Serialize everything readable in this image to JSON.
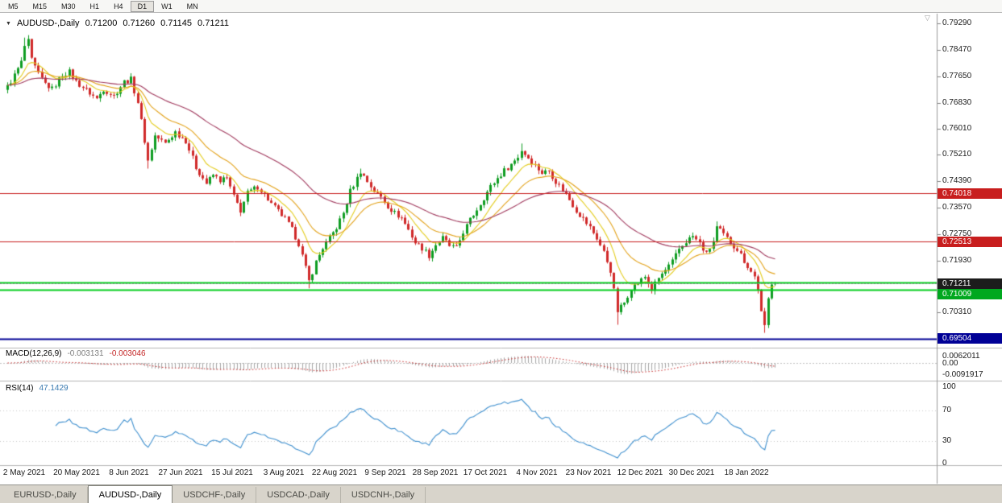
{
  "toolbar": {
    "timeframes": [
      "M5",
      "M15",
      "M30",
      "H1",
      "H4",
      "D1",
      "W1",
      "MN"
    ],
    "active_timeframe": "D1"
  },
  "icons": {
    "collapse": "▼",
    "shift_marker": "▽"
  },
  "chart": {
    "title": {
      "symbol": "AUDUSD-,Daily",
      "open": "0.71200",
      "high": "0.71260",
      "low": "0.71145",
      "close": "0.71211"
    },
    "price_axis_labels": [
      "0.79290",
      "0.78470",
      "0.77650",
      "0.76830",
      "0.76010",
      "0.75210",
      "0.74390",
      "0.73570",
      "0.72750",
      "0.71930",
      "0.70310"
    ],
    "price_tags": [
      {
        "name": "price-tag-resistance-1",
        "label": "0.74018",
        "value": 0.74018,
        "bg": "#c81e1e"
      },
      {
        "name": "price-tag-resistance-2",
        "label": "0.72513",
        "value": 0.72513,
        "bg": "#c81e1e"
      },
      {
        "name": "price-tag-last-price",
        "label": "0.71211",
        "value": 0.71211,
        "bg": "#1c1c1c"
      },
      {
        "name": "price-tag-support-green",
        "label": "0.71009",
        "value": 0.71009,
        "bg": "#00a81f"
      },
      {
        "name": "price-tag-support-blue",
        "label": "0.69504",
        "value": 0.69504,
        "bg": "#000096"
      }
    ],
    "hlines": [
      {
        "name": "resistance-line-1",
        "value": 0.74018,
        "color": "#c81e1e",
        "width": 1
      },
      {
        "name": "resistance-line-2",
        "value": 0.72513,
        "color": "#c81e1e",
        "width": 1
      },
      {
        "name": "support-zone-top",
        "value": 0.7125,
        "color": "#00ce1b",
        "width": 2
      },
      {
        "name": "support-zone-bottom",
        "value": 0.71009,
        "color": "#00ce1b",
        "width": 2
      },
      {
        "name": "bid-line",
        "value": 0.71211,
        "color": "#8a8a8a",
        "width": 1,
        "dash": [
          2,
          2
        ]
      },
      {
        "name": "major-support-line",
        "value": 0.69504,
        "color": "#000096",
        "width": 2
      }
    ],
    "date_axis": [
      [
        "2 May 2021",
        30
      ],
      [
        "20 May 2021",
        95
      ],
      [
        "8 Jun 2021",
        160
      ],
      [
        "27 Jun 2021",
        224
      ],
      [
        "15 Jul 2021",
        288
      ],
      [
        "3 Aug 2021",
        352
      ],
      [
        "22 Aug 2021",
        415
      ],
      [
        "9 Sep 2021",
        478
      ],
      [
        "28 Sep 2021",
        540
      ],
      [
        "17 Oct 2021",
        602
      ],
      [
        "4 Nov 2021",
        666
      ],
      [
        "23 Nov 2021",
        730
      ],
      [
        "12 Dec 2021",
        794
      ],
      [
        "30 Dec 2021",
        858
      ],
      [
        "18 Jan 2022",
        926
      ]
    ]
  },
  "macd": {
    "label": "MACD(12,26,9)",
    "value_main": "-0.003131",
    "value_signal": "-0.003046",
    "axis_labels": [
      {
        "text": "0.0062011",
        "value": 0.0062011
      },
      {
        "text": "0.00",
        "value": 0
      },
      {
        "text": "-0.0091917",
        "value": -0.0091917
      }
    ],
    "histogram_color": "#a6a6a6",
    "signal_color": "#c42525"
  },
  "rsi": {
    "label": "RSI(14)",
    "value": "47.1429",
    "axis_labels": [
      {
        "text": "100",
        "value": 100
      },
      {
        "text": "70",
        "value": 70
      },
      {
        "text": "30",
        "value": 30
      },
      {
        "text": "0",
        "value": 0
      }
    ],
    "levels": [
      70,
      30
    ],
    "line_color": "#3e8fce"
  },
  "tabs": [
    {
      "id": "eurusd-daily",
      "label": "EURUSD-,Daily",
      "active": false
    },
    {
      "id": "audusd-daily",
      "label": "AUDUSD-,Daily",
      "active": true
    },
    {
      "id": "usdchf-daily",
      "label": "USDCHF-,Daily",
      "active": false
    },
    {
      "id": "usdcad-daily",
      "label": "USDCAD-,Daily",
      "active": false
    },
    {
      "id": "usdcnh-daily",
      "label": "USDCNH-,Daily",
      "active": false
    }
  ],
  "chart_data": {
    "type": "candlestick",
    "title": "AUDUSD-,Daily",
    "symbol": "AUDUSD",
    "timeframe": "Daily",
    "current_bar": {
      "open": 0.712,
      "high": 0.7126,
      "low": 0.71145,
      "close": 0.71211
    },
    "candle_count": 225,
    "up_color": "#0f9d22",
    "down_color": "#d02a2a",
    "y_axis": {
      "ticks": [
        0.7929,
        0.7847,
        0.7765,
        0.7683,
        0.7601,
        0.7521,
        0.7439,
        0.7357,
        0.7275,
        0.7193,
        0.7031
      ],
      "tick_interval": 0.0082
    },
    "x_axis_labels": [
      "2 May 2021",
      "20 May 2021",
      "8 Jun 2021",
      "27 Jun 2021",
      "15 Jul 2021",
      "3 Aug 2021",
      "22 Aug 2021",
      "9 Sep 2021",
      "28 Sep 2021",
      "17 Oct 2021",
      "4 Nov 2021",
      "23 Nov 2021",
      "12 Dec 2021",
      "30 Dec 2021",
      "18 Jan 2022"
    ],
    "key_levels": {
      "resistance": [
        0.74018,
        0.72513
      ],
      "support_zone": [
        0.7125,
        0.71009
      ],
      "major_support": 0.69504,
      "last": 0.71211
    },
    "moving_averages": [
      {
        "period": 9,
        "color": "#e3cc1d"
      },
      {
        "period": 20,
        "color": "#e2a118"
      },
      {
        "period": 50,
        "color": "#a13a5e"
      }
    ],
    "close_path_anchors": [
      [
        0,
        0.7732
      ],
      [
        2,
        0.7768
      ],
      [
        4,
        0.7808
      ],
      [
        5,
        0.7858
      ],
      [
        6,
        0.7872
      ],
      [
        7,
        0.7815
      ],
      [
        9,
        0.777
      ],
      [
        11,
        0.7742
      ],
      [
        13,
        0.7725
      ],
      [
        16,
        0.777
      ],
      [
        18,
        0.7778
      ],
      [
        20,
        0.7748
      ],
      [
        23,
        0.7722
      ],
      [
        26,
        0.7695
      ],
      [
        28,
        0.7725
      ],
      [
        31,
        0.7704
      ],
      [
        34,
        0.7748
      ],
      [
        36,
        0.7755
      ],
      [
        38,
        0.7685
      ],
      [
        40,
        0.7565
      ],
      [
        41,
        0.7502
      ],
      [
        43,
        0.758
      ],
      [
        46,
        0.7556
      ],
      [
        49,
        0.7592
      ],
      [
        52,
        0.7565
      ],
      [
        55,
        0.7482
      ],
      [
        58,
        0.7432
      ],
      [
        60,
        0.7458
      ],
      [
        62,
        0.7442
      ],
      [
        64,
        0.7448
      ],
      [
        66,
        0.739
      ],
      [
        68,
        0.7348
      ],
      [
        70,
        0.7402
      ],
      [
        73,
        0.7422
      ],
      [
        75,
        0.7398
      ],
      [
        77,
        0.7368
      ],
      [
        79,
        0.7345
      ],
      [
        81,
        0.7322
      ],
      [
        83,
        0.7288
      ],
      [
        85,
        0.7245
      ],
      [
        87,
        0.7168
      ],
      [
        88,
        0.7128
      ],
      [
        90,
        0.7188
      ],
      [
        92,
        0.7232
      ],
      [
        94,
        0.7262
      ],
      [
        96,
        0.7295
      ],
      [
        98,
        0.734
      ],
      [
        100,
        0.7408
      ],
      [
        102,
        0.7448
      ],
      [
        103,
        0.747
      ],
      [
        105,
        0.7438
      ],
      [
        107,
        0.7408
      ],
      [
        109,
        0.739
      ],
      [
        111,
        0.7362
      ],
      [
        113,
        0.734
      ],
      [
        115,
        0.7325
      ],
      [
        117,
        0.7288
      ],
      [
        119,
        0.7248
      ],
      [
        121,
        0.7232
      ],
      [
        123,
        0.7208
      ],
      [
        125,
        0.7242
      ],
      [
        127,
        0.7262
      ],
      [
        129,
        0.7238
      ],
      [
        131,
        0.723
      ],
      [
        133,
        0.7282
      ],
      [
        135,
        0.7318
      ],
      [
        137,
        0.7352
      ],
      [
        139,
        0.7388
      ],
      [
        141,
        0.7422
      ],
      [
        143,
        0.7448
      ],
      [
        145,
        0.7472
      ],
      [
        147,
        0.7492
      ],
      [
        149,
        0.7515
      ],
      [
        150,
        0.7535
      ],
      [
        152,
        0.7512
      ],
      [
        154,
        0.7488
      ],
      [
        156,
        0.7465
      ],
      [
        158,
        0.7472
      ],
      [
        160,
        0.7438
      ],
      [
        162,
        0.7412
      ],
      [
        164,
        0.7382
      ],
      [
        166,
        0.7348
      ],
      [
        168,
        0.7322
      ],
      [
        170,
        0.7295
      ],
      [
        172,
        0.7262
      ],
      [
        174,
        0.7218
      ],
      [
        176,
        0.7162
      ],
      [
        178,
        0.7035
      ],
      [
        180,
        0.7062
      ],
      [
        182,
        0.7108
      ],
      [
        184,
        0.7122
      ],
      [
        186,
        0.7142
      ],
      [
        188,
        0.7102
      ],
      [
        190,
        0.7138
      ],
      [
        192,
        0.7162
      ],
      [
        194,
        0.7188
      ],
      [
        196,
        0.7228
      ],
      [
        198,
        0.7252
      ],
      [
        200,
        0.7268
      ],
      [
        202,
        0.7245
      ],
      [
        204,
        0.7212
      ],
      [
        206,
        0.7252
      ],
      [
        207,
        0.7295
      ],
      [
        209,
        0.7272
      ],
      [
        211,
        0.7248
      ],
      [
        213,
        0.7228
      ],
      [
        215,
        0.7192
      ],
      [
        217,
        0.7158
      ],
      [
        218,
        0.7142
      ],
      [
        219,
        0.7102
      ],
      [
        220,
        0.7035
      ],
      [
        221,
        0.6992
      ],
      [
        222,
        0.7075
      ],
      [
        223,
        0.7118
      ],
      [
        224,
        0.71211
      ]
    ],
    "wick_overrides": [
      {
        "i": 5,
        "high": 0.7885
      },
      {
        "i": 6,
        "high": 0.7891
      },
      {
        "i": 41,
        "low": 0.7478
      },
      {
        "i": 88,
        "low": 0.7106
      },
      {
        "i": 103,
        "high": 0.7478
      },
      {
        "i": 150,
        "high": 0.7556
      },
      {
        "i": 178,
        "low": 0.6993
      },
      {
        "i": 207,
        "high": 0.7314
      },
      {
        "i": 221,
        "low": 0.6968
      }
    ],
    "indicators": {
      "macd": {
        "fast": 12,
        "slow": 26,
        "signal": 9,
        "last_main": -0.003131,
        "last_signal": -0.003046
      },
      "rsi": {
        "period": 14,
        "last": 47.1429
      }
    }
  }
}
